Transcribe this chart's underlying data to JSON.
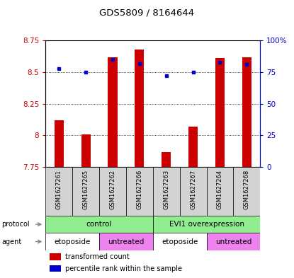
{
  "title": "GDS5809 / 8164644",
  "samples": [
    "GSM1627261",
    "GSM1627265",
    "GSM1627262",
    "GSM1627266",
    "GSM1627263",
    "GSM1627267",
    "GSM1627264",
    "GSM1627268"
  ],
  "transformed_counts": [
    8.12,
    8.01,
    8.62,
    8.68,
    7.87,
    8.07,
    8.61,
    8.62
  ],
  "percentile_ranks": [
    78,
    75,
    85,
    82,
    72,
    75,
    83,
    81
  ],
  "ylim_left": [
    7.75,
    8.75
  ],
  "ylim_right": [
    0,
    100
  ],
  "yticks_left": [
    7.75,
    8.0,
    8.25,
    8.5,
    8.75
  ],
  "ytick_labels_left": [
    "7.75",
    "8",
    "8.25",
    "8.5",
    "8.75"
  ],
  "yticks_right": [
    0,
    25,
    50,
    75,
    100
  ],
  "ytick_labels_right": [
    "0",
    "25",
    "50",
    "75",
    "100%"
  ],
  "protocol_labels": [
    [
      "control",
      0,
      3
    ],
    [
      "EVI1 overexpression",
      4,
      7
    ]
  ],
  "agent_labels": [
    [
      "etoposide",
      0,
      1
    ],
    [
      "untreated",
      2,
      3
    ],
    [
      "etoposide",
      4,
      5
    ],
    [
      "untreated",
      6,
      7
    ]
  ],
  "protocol_color": "#90EE90",
  "agent_etoposide_color": "#FFFFFF",
  "agent_untreated_color": "#EE82EE",
  "bar_color": "#CC0000",
  "dot_color": "#0000CC",
  "sample_bg_color": "#D3D3D3",
  "left_axis_color": "#CC0000",
  "right_axis_color": "#0000CC",
  "bar_width": 0.35,
  "baseline": 7.75,
  "arrow_color": "#808080"
}
